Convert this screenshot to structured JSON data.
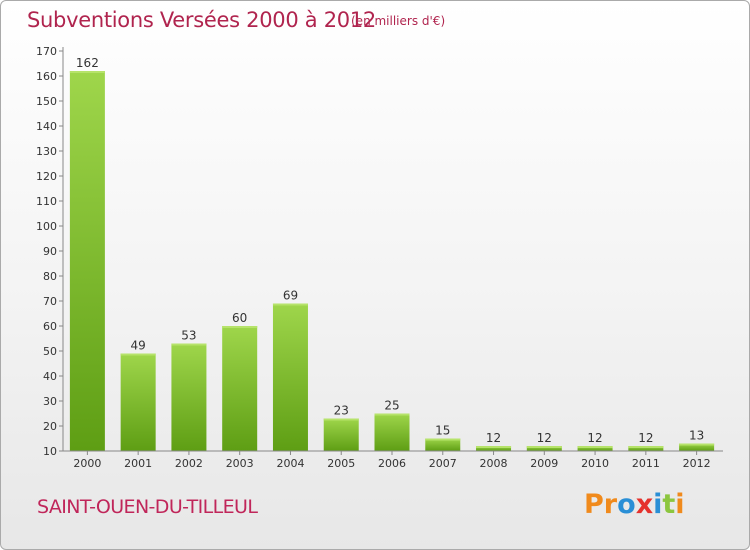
{
  "header": {
    "title": "Subventions Versées 2000 à 2012",
    "subtitle": "(en milliers d'€)"
  },
  "footer": {
    "commune": "SAINT-OUEN-DU-TILLEUL",
    "logo_letters": [
      "P",
      "r",
      "o",
      "x",
      "i",
      "t",
      "i"
    ],
    "logo_colors": [
      "#f08a1c",
      "#f08a1c",
      "#2a8fd6",
      "#e5322d",
      "#2a8fd6",
      "#8cc63f",
      "#f08a1c"
    ]
  },
  "colors": {
    "bar_light": "#9fd64b",
    "bar_dark": "#5e9e14",
    "axis": "#888888",
    "title": "#b0244e"
  },
  "chart_data": {
    "type": "bar",
    "title": "Subventions Versées 2000 à 2012",
    "subtitle": "(en milliers d'€)",
    "categories": [
      "2000",
      "2001",
      "2002",
      "2003",
      "2004",
      "2005",
      "2006",
      "2007",
      "2008",
      "2009",
      "2010",
      "2011",
      "2012"
    ],
    "values": [
      162,
      49,
      53,
      60,
      69,
      23,
      25,
      15,
      12,
      12,
      12,
      12,
      13
    ],
    "ylim": [
      10,
      170
    ],
    "yticks": [
      10,
      20,
      30,
      40,
      50,
      60,
      70,
      80,
      90,
      100,
      110,
      120,
      130,
      140,
      150,
      160,
      170
    ],
    "grid": false,
    "legend": "none"
  }
}
